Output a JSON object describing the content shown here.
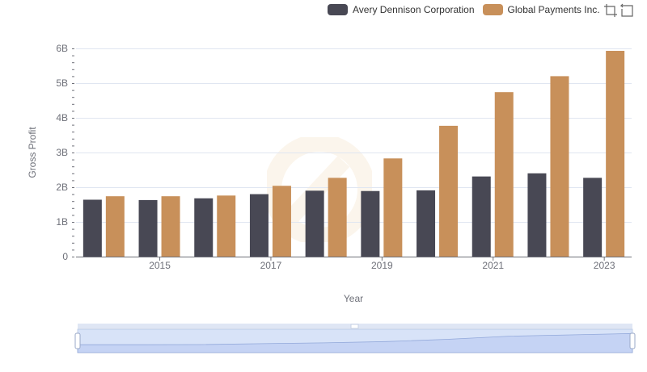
{
  "legend": {
    "items": [
      {
        "label": "Avery Dennison Corporation",
        "color": "#484854"
      },
      {
        "label": "Global Payments Inc.",
        "color": "#c8905a"
      }
    ]
  },
  "toolbox": {
    "icons": [
      "zoom-icon",
      "restore-icon"
    ]
  },
  "chart_data": {
    "type": "bar",
    "x": [
      2014,
      2015,
      2016,
      2017,
      2018,
      2019,
      2020,
      2021,
      2022,
      2023
    ],
    "xticks": [
      "2015",
      "2017",
      "2019",
      "2021",
      "2023"
    ],
    "xlabel": "Year",
    "ylabel": "Gross Profit",
    "yticks": [
      "0",
      "1B",
      "2B",
      "3B",
      "4B",
      "5B",
      "6B"
    ],
    "ylim": [
      0,
      6000000000
    ],
    "grid": true,
    "legend_position": "top-right",
    "series": [
      {
        "name": "Avery Dennison Corporation",
        "color": "#484854",
        "values": [
          1640000000,
          1630000000,
          1680000000,
          1800000000,
          1900000000,
          1890000000,
          1910000000,
          2310000000,
          2400000000,
          2270000000
        ]
      },
      {
        "name": "Global Payments Inc.",
        "color": "#c8905a",
        "values": [
          1740000000,
          1740000000,
          1760000000,
          2040000000,
          2270000000,
          2830000000,
          3770000000,
          4740000000,
          5200000000,
          5930000000
        ]
      }
    ],
    "datazoom": {
      "start": 0,
      "end": 100
    }
  }
}
